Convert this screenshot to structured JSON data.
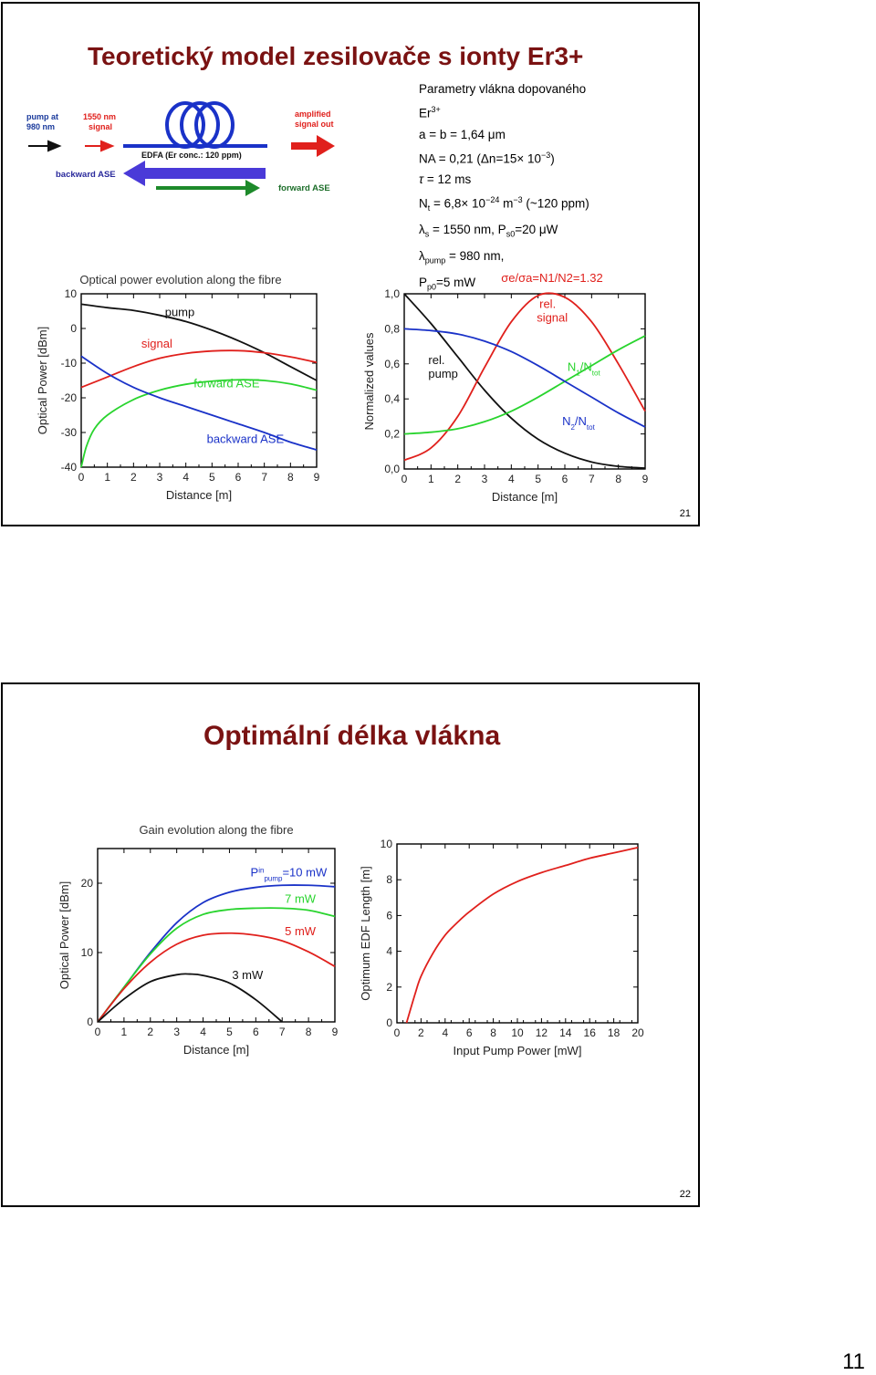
{
  "slide21": {
    "title": "Teoretický model zesilovače s ionty Er3+",
    "params": {
      "heading": "Parametry vlákna dopovaného",
      "er_base": "Er",
      "er_sup": "3+",
      "dims": "a = b = 1,64 μm",
      "na_prefix": "NA = 0,21 (Δn=15× 10",
      "na_exp": "−3",
      "na_suffix": ")",
      "tau_sym": "τ",
      "tau_val": " = 12 ms",
      "nt_base": "N",
      "nt_sub": "t",
      "nt_mid": " = 6,8× 10",
      "nt_exp1": "−24",
      "nt_m": " m",
      "nt_exp2": "−3",
      "nt_suffix": " (~120 ppm)",
      "ls_sym": "λ",
      "ls_sub": "s",
      "ls_mid": " = 1550 nm, P",
      "ls_sub2": "s0",
      "ls_suffix": "=20 μW",
      "lp_sym": "λ",
      "lp_sub": "pump",
      "lp_suffix": " = 980 nm,",
      "pp_base": "P",
      "pp_sub": "p0",
      "pp_suffix": "=5 mW"
    },
    "diagram": {
      "pump_in": [
        "pump at",
        "980 nm"
      ],
      "signal_in": [
        "1550 nm",
        "signal"
      ],
      "edfa_label": "EDFA (Er conc.: 120 ppm)",
      "amp_out": [
        "amplified",
        "signal out"
      ],
      "backward_ase": "backward ASE",
      "forward_ase": "forward ASE",
      "colors": {
        "pump": "#000000",
        "signal": "#e0201c",
        "coil": "#1a32c8",
        "backward": "#4a3ad8",
        "forward": "#1d8a2a"
      }
    },
    "number": "21"
  },
  "slide22": {
    "title": "Optimální délka vlákna",
    "number": "22"
  },
  "page_number": "11",
  "chart_data": [
    {
      "type": "line",
      "title": "Optical power evolution along the fibre",
      "xlabel": "Distance [m]",
      "ylabel": "Optical Power [dBm]",
      "xlim": [
        0,
        9
      ],
      "ylim": [
        -40,
        10
      ],
      "xticks": [
        "0",
        "1",
        "2",
        "3",
        "4",
        "5",
        "6",
        "7",
        "8",
        "9"
      ],
      "yticks": [
        "10",
        "0",
        "-10",
        "-20",
        "-30",
        "-40"
      ],
      "series": [
        {
          "name": "pump",
          "color": "#111111",
          "x": [
            0,
            1,
            2,
            3,
            4,
            5,
            6,
            7,
            8,
            9
          ],
          "y": [
            7,
            6,
            5.2,
            3.8,
            2,
            -0.5,
            -3.5,
            -7,
            -11,
            -15
          ]
        },
        {
          "name": "signal",
          "color": "#e0201c",
          "x": [
            0,
            1,
            2,
            3,
            4,
            5,
            6,
            7,
            8,
            9
          ],
          "y": [
            -17,
            -14,
            -11,
            -8.6,
            -7.2,
            -6.5,
            -6.4,
            -7,
            -8.2,
            -9.8
          ]
        },
        {
          "name": "forward ASE",
          "color": "#29d42e",
          "x": [
            0,
            0.2,
            0.5,
            1,
            2,
            3,
            4,
            5,
            6,
            7,
            8,
            9
          ],
          "y": [
            -40,
            -34,
            -29,
            -25,
            -20.5,
            -17.8,
            -16.1,
            -15.2,
            -14.8,
            -15,
            -16,
            -17.8
          ]
        },
        {
          "name": "backward ASE",
          "color": "#1a32c8",
          "x": [
            0,
            1,
            2,
            3,
            4,
            5,
            6,
            7,
            8,
            9
          ],
          "y": [
            -8,
            -13,
            -17,
            -20,
            -22.5,
            -25,
            -27.5,
            -30,
            -32.8,
            -35
          ]
        }
      ]
    },
    {
      "type": "line",
      "title": "σe/σa=N1/N2=1.32",
      "xlabel": "Distance [m]",
      "ylabel": "Normalized values",
      "xlim": [
        0,
        9
      ],
      "ylim": [
        0,
        1
      ],
      "xticks": [
        "0",
        "1",
        "2",
        "3",
        "4",
        "5",
        "6",
        "7",
        "8",
        "9"
      ],
      "yticks": [
        "1,0",
        "0,8",
        "0,6",
        "0,4",
        "0,2",
        "0,0"
      ],
      "series": [
        {
          "name": "rel. pump",
          "color": "#111111",
          "x": [
            0,
            1,
            2,
            3,
            4,
            5,
            6,
            7,
            8,
            9
          ],
          "y": [
            1,
            0.83,
            0.64,
            0.45,
            0.29,
            0.17,
            0.09,
            0.04,
            0.015,
            0.005
          ]
        },
        {
          "name": "rel. signal",
          "color": "#e0201c",
          "x": [
            0,
            1,
            2,
            3,
            4,
            5,
            6,
            7,
            8,
            9
          ],
          "y": [
            0.05,
            0.12,
            0.3,
            0.58,
            0.84,
            0.99,
            0.98,
            0.84,
            0.6,
            0.33
          ]
        },
        {
          "name": "N1/Ntot",
          "color": "#29d42e",
          "x": [
            0,
            1,
            2,
            3,
            4,
            5,
            6,
            7,
            8,
            9
          ],
          "y": [
            0.2,
            0.21,
            0.23,
            0.27,
            0.33,
            0.41,
            0.5,
            0.59,
            0.68,
            0.76
          ]
        },
        {
          "name": "N2/Ntot",
          "color": "#1a32c8",
          "x": [
            0,
            1,
            2,
            3,
            4,
            5,
            6,
            7,
            8,
            9
          ],
          "y": [
            0.8,
            0.79,
            0.77,
            0.73,
            0.67,
            0.59,
            0.5,
            0.41,
            0.32,
            0.24
          ]
        }
      ]
    },
    {
      "type": "line",
      "title": "Gain evolution along the fibre",
      "xlabel": "Distance [m]",
      "ylabel": "Optical Power [dBm]",
      "xlim": [
        0,
        9
      ],
      "ylim": [
        0,
        25
      ],
      "xticks": [
        "0",
        "1",
        "2",
        "3",
        "4",
        "5",
        "6",
        "7",
        "8",
        "9"
      ],
      "yticks": [
        "20",
        "10",
        "0"
      ],
      "series": [
        {
          "name": "10 mW",
          "color": "#1a32c8",
          "x": [
            0,
            1,
            2,
            3,
            4,
            5,
            6,
            7,
            8,
            9
          ],
          "y": [
            0,
            5,
            10,
            14.3,
            17.2,
            18.7,
            19.4,
            19.7,
            19.7,
            19.5
          ]
        },
        {
          "name": "7 mW",
          "color": "#29d42e",
          "x": [
            0,
            1,
            2,
            3,
            4,
            5,
            6,
            7,
            8,
            9
          ],
          "y": [
            0,
            5,
            9.8,
            13.5,
            15.5,
            16.2,
            16.4,
            16.4,
            16.1,
            15.2
          ]
        },
        {
          "name": "5 mW",
          "color": "#e0201c",
          "x": [
            0,
            1,
            2,
            3,
            4,
            5,
            6,
            7,
            8,
            9
          ],
          "y": [
            0,
            4.8,
            8.6,
            11.2,
            12.5,
            12.8,
            12.5,
            11.7,
            10.1,
            8
          ]
        },
        {
          "name": "3 mW",
          "color": "#111111",
          "x": [
            0,
            1,
            2,
            3,
            3.5,
            4,
            5,
            6,
            7
          ],
          "y": [
            0,
            3.3,
            5.8,
            6.8,
            6.9,
            6.7,
            5.6,
            3.2,
            0
          ]
        }
      ],
      "annotations": [
        "P",
        "in",
        "pump",
        "=10 mW",
        "7 mW",
        "5 mW",
        "3 mW"
      ]
    },
    {
      "type": "line",
      "title": "",
      "xlabel": "Input Pump Power [mW]",
      "ylabel": "Optimum EDF Length [m]",
      "xlim": [
        0,
        20
      ],
      "ylim": [
        0,
        10
      ],
      "xticks": [
        "0",
        "2",
        "4",
        "6",
        "8",
        "10",
        "12",
        "14",
        "16",
        "18",
        "20"
      ],
      "yticks": [
        "10",
        "8",
        "6",
        "4",
        "2",
        "0"
      ],
      "series": [
        {
          "name": "",
          "color": "#e0201c",
          "x": [
            0.8,
            1.5,
            2,
            3,
            4,
            5,
            6,
            8,
            10,
            12,
            14,
            16,
            18,
            20
          ],
          "y": [
            0,
            1.6,
            2.6,
            3.9,
            4.9,
            5.6,
            6.2,
            7.2,
            7.9,
            8.4,
            8.8,
            9.2,
            9.5,
            9.8
          ]
        }
      ]
    }
  ]
}
